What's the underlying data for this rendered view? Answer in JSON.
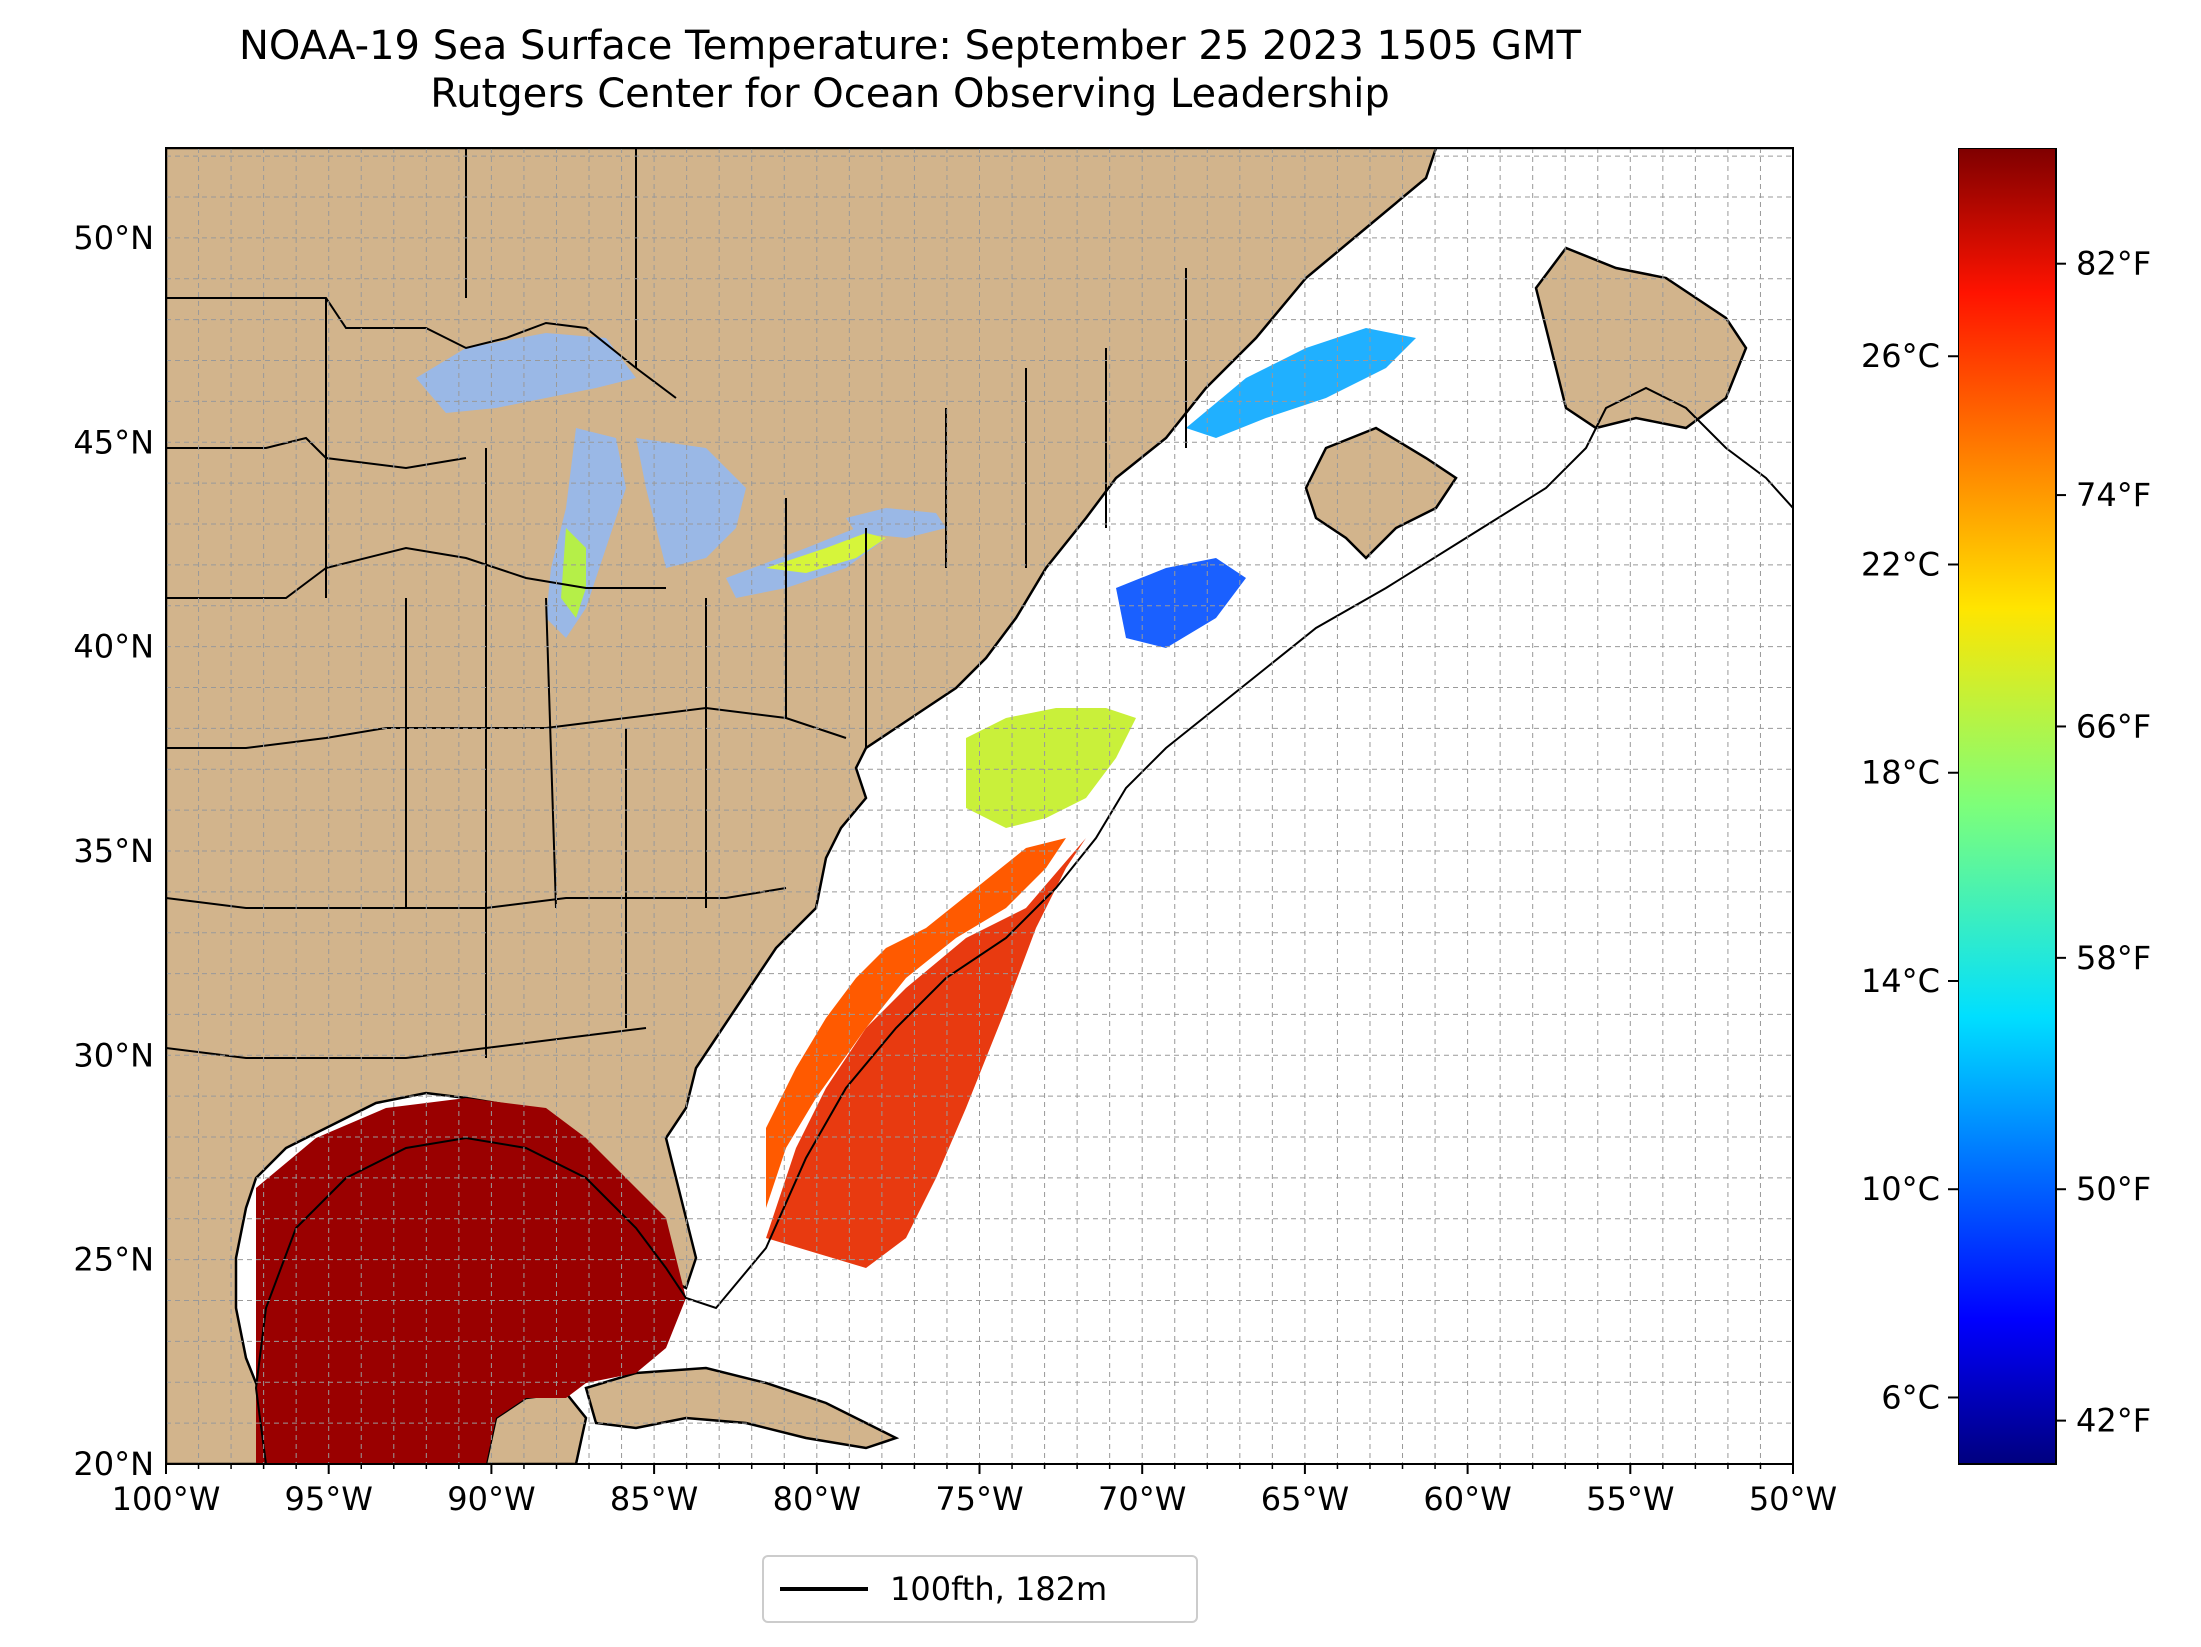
{
  "title": {
    "line1": "NOAA-19 Sea Surface Temperature: September 25 2023 1505 GMT",
    "line2": "Rutgers Center for Ocean Observing Leadership"
  },
  "map": {
    "type": "sea-surface-temperature-map",
    "lon_range": [
      -100,
      -50
    ],
    "lat_range": [
      20,
      52.2
    ],
    "lon_ticks": [
      "100°W",
      "95°W",
      "90°W",
      "85°W",
      "80°W",
      "75°W",
      "70°W",
      "65°W",
      "60°W",
      "55°W",
      "50°W"
    ],
    "lat_ticks": [
      "20°N",
      "25°N",
      "30°N",
      "35°N",
      "40°N",
      "45°N",
      "50°N"
    ],
    "gridlines": "dashed, 1° spacing",
    "land_color": "#d2b48c",
    "lake_color": "#9ab8e6",
    "ocean_color": "#ffffff",
    "contour_label": "100fth, 182m",
    "legend_position": "bottom-center"
  },
  "colorbar": {
    "colormap": "jet",
    "fahrenheit_range": [
      40.5,
      86
    ],
    "celsius_ticks": [
      "26°C",
      "22°C",
      "18°C",
      "14°C",
      "10°C",
      "6°C"
    ],
    "fahrenheit_ticks": [
      "82°F",
      "74°F",
      "66°F",
      "58°F",
      "50°F",
      "42°F"
    ]
  }
}
